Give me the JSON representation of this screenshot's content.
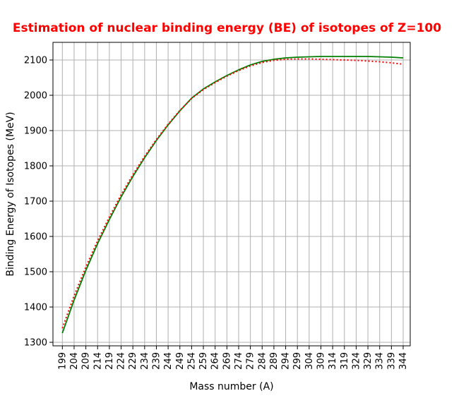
{
  "chart_data": {
    "type": "line",
    "title": "Estimation of nuclear binding energy (BE) of isotopes of Z=100",
    "title_color": "#ff0000",
    "xlabel": "Mass number (A)",
    "ylabel": "Binding Energy of Isotopes (MeV)",
    "x_ticks": [
      199,
      204,
      209,
      214,
      219,
      224,
      229,
      234,
      239,
      244,
      249,
      254,
      259,
      264,
      269,
      274,
      279,
      284,
      289,
      294,
      299,
      304,
      309,
      314,
      319,
      324,
      329,
      334,
      339,
      344
    ],
    "y_ticks": [
      1300,
      1400,
      1500,
      1600,
      1700,
      1800,
      1900,
      2000,
      2100
    ],
    "xlim": [
      195,
      347
    ],
    "ylim": [
      1290,
      2150
    ],
    "grid": true,
    "series": [
      {
        "style": "solid",
        "color": "#008000",
        "x": [
          199,
          204,
          209,
          214,
          219,
          224,
          229,
          234,
          239,
          244,
          249,
          254,
          259,
          264,
          269,
          274,
          279,
          284,
          289,
          294,
          299,
          304,
          309,
          314,
          319,
          324,
          329,
          334,
          339,
          344
        ],
        "values": [
          1326,
          1420,
          1504,
          1580,
          1648,
          1712,
          1770,
          1823,
          1872,
          1916,
          1956,
          1992,
          2018,
          2038,
          2056,
          2072,
          2086,
          2096,
          2102,
          2106,
          2108,
          2109,
          2110,
          2110,
          2110,
          2110,
          2110,
          2109,
          2108,
          2106
        ]
      },
      {
        "style": "dotted",
        "color": "#ff0000",
        "x": [
          199,
          204,
          209,
          214,
          219,
          224,
          229,
          234,
          239,
          244,
          249,
          254,
          259,
          264,
          269,
          274,
          279,
          284,
          289,
          294,
          299,
          304,
          309,
          314,
          319,
          324,
          329,
          334,
          339,
          344
        ],
        "values": [
          1340,
          1432,
          1513,
          1588,
          1655,
          1718,
          1775,
          1827,
          1875,
          1918,
          1957,
          1991,
          2016,
          2036,
          2054,
          2070,
          2083,
          2093,
          2099,
          2102,
          2103,
          2103,
          2102,
          2101,
          2100,
          2099,
          2097,
          2095,
          2092,
          2088
        ]
      }
    ]
  }
}
